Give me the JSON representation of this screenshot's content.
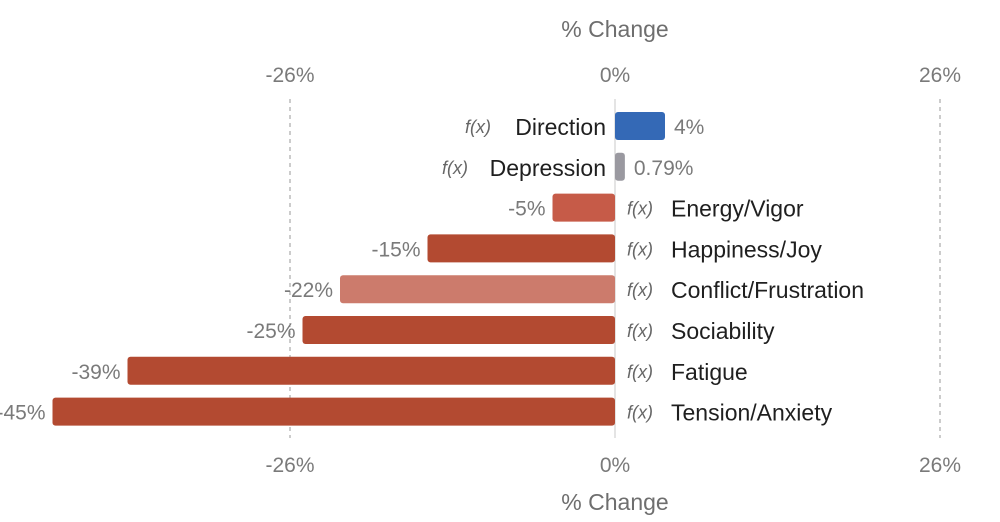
{
  "chart_data": {
    "type": "bar",
    "orientation": "horizontal",
    "title": "",
    "xlabel": "% Change",
    "ylabel": "",
    "xlim": [
      -49,
      49
    ],
    "xticks": [
      -26,
      0,
      26
    ],
    "tick_labels": [
      "-26%",
      "0%",
      "26%"
    ],
    "formula_marker": "f(x)",
    "categories": [
      "Direction",
      "Depression",
      "Energy/Vigor",
      "Happiness/Joy",
      "Conflict/Frustration",
      "Sociability",
      "Fatigue",
      "Tension/Anxiety"
    ],
    "values": [
      4,
      0.79,
      -5,
      -15,
      -22,
      -25,
      -39,
      -45
    ],
    "value_labels": [
      "4%",
      "0.79%",
      "-5%",
      "-15%",
      "-22%",
      "-25%",
      "-39%",
      "-45%"
    ],
    "bar_colors": [
      "#3469b6",
      "#9a99a0",
      "#c65b48",
      "#b34a31",
      "#cc7b6c",
      "#b34a31",
      "#b34a31",
      "#b34a31"
    ],
    "legend": "none"
  }
}
